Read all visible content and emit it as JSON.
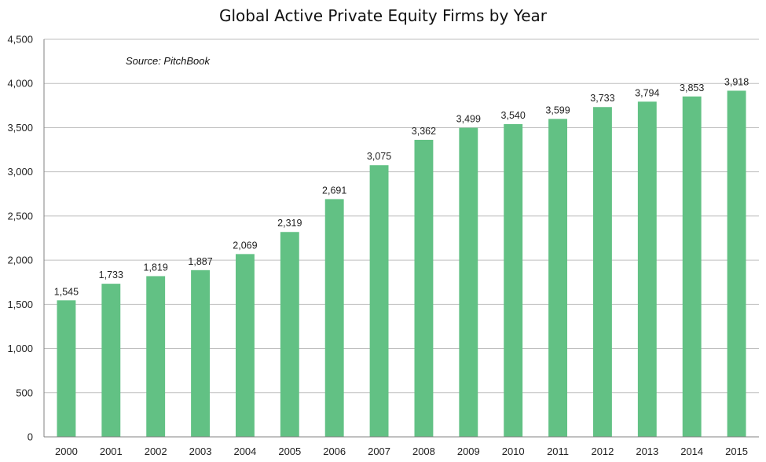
{
  "chart_data": {
    "type": "bar",
    "title": "Global Active Private Equity Firms by Year",
    "annotation": "Source: PitchBook",
    "categories": [
      "2000",
      "2001",
      "2002",
      "2003",
      "2004",
      "2005",
      "2006",
      "2007",
      "2008",
      "2009",
      "2010",
      "2011",
      "2012",
      "2013",
      "2014",
      "2015"
    ],
    "values": [
      1545,
      1733,
      1819,
      1887,
      2069,
      2319,
      2691,
      3075,
      3362,
      3499,
      3540,
      3599,
      3733,
      3794,
      3853,
      3918
    ],
    "value_labels": [
      "1,545",
      "1,733",
      "1,819",
      "1,887",
      "2,069",
      "2,319",
      "2,691",
      "3,075",
      "3,362",
      "3,499",
      "3,540",
      "3,599",
      "3,733",
      "3,794",
      "3,853",
      "3,918"
    ],
    "yticks": [
      0,
      500,
      1000,
      1500,
      2000,
      2500,
      3000,
      3500,
      4000,
      4500
    ],
    "ytick_labels": [
      "0",
      "500",
      "1,000",
      "1,500",
      "2,000",
      "2,500",
      "3,000",
      "3,500",
      "4,000",
      "4,500"
    ],
    "ylim": [
      0,
      4500
    ],
    "xlabel": "",
    "ylabel": "",
    "grid": true,
    "legend": false,
    "colors": {
      "bar": "#62c184",
      "grid": "#bfbfbf",
      "axis": "#808080"
    }
  }
}
